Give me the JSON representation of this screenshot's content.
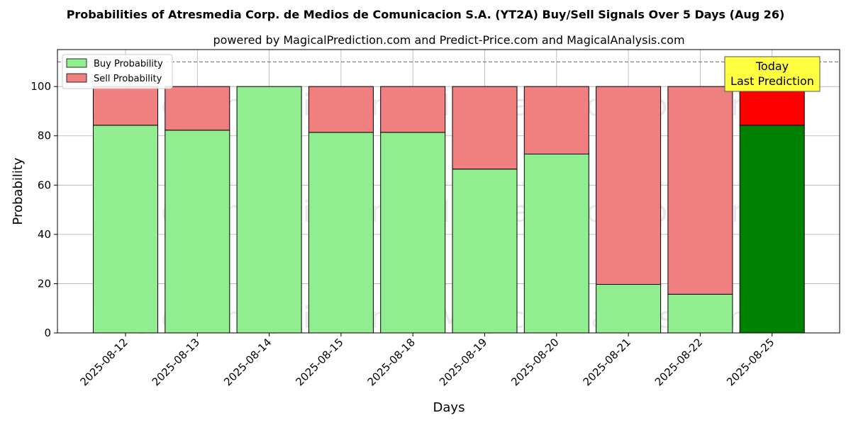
{
  "chart_data": {
    "type": "bar",
    "title": "Probabilities of Atresmedia Corp. de Medios de Comunicacion S.A. (YT2A) Buy/Sell Signals Over 5 Days (Aug 26)",
    "subtitle": "powered by MagicalPrediction.com and Predict-Price.com and MagicalAnalysis.com",
    "xlabel": "Days",
    "ylabel": "Probability",
    "ylim": [
      0,
      115
    ],
    "yticks": [
      0,
      20,
      40,
      60,
      80,
      100
    ],
    "grid": true,
    "legend_position": "top-left",
    "reference_line": 110,
    "categories": [
      "2025-08-12",
      "2025-08-13",
      "2025-08-14",
      "2025-08-15",
      "2025-08-18",
      "2025-08-19",
      "2025-08-20",
      "2025-08-21",
      "2025-08-22",
      "2025-08-25"
    ],
    "series": [
      {
        "name": "Buy Probability",
        "values": [
          84.3,
          82.3,
          100,
          81.4,
          81.4,
          66.5,
          72.6,
          19.7,
          15.7,
          84.3
        ]
      },
      {
        "name": "Sell Probability",
        "values": [
          15.7,
          17.7,
          0,
          18.6,
          18.6,
          33.5,
          27.4,
          80.3,
          84.3,
          15.7
        ]
      }
    ],
    "colors": {
      "buy": "#90ee90",
      "sell": "#f08080",
      "buy_highlight": "#008000",
      "sell_highlight": "#ff0000",
      "annotation_bg": "#ffff40"
    },
    "highlight_index": 9,
    "annotation": {
      "lines": [
        "Today",
        "Last Prediction"
      ]
    },
    "watermarks": [
      "MagicalAnalysis.com",
      "MagicalPrediction.com"
    ]
  }
}
